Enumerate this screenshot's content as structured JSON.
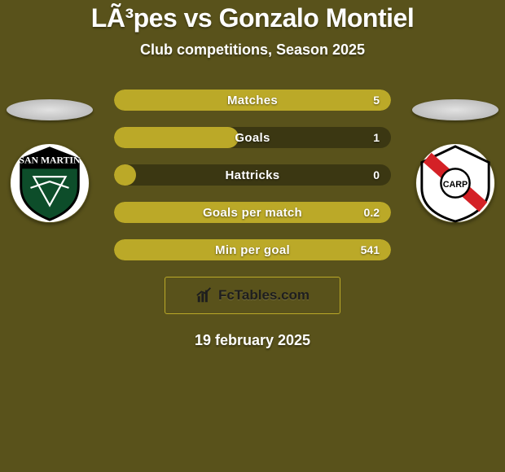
{
  "colors": {
    "background": "#59521b",
    "pill_fill": "#bba928",
    "pill_empty": "#3b3712",
    "text": "#ffffff",
    "brand_text": "#1e1e1e"
  },
  "header": {
    "title": "LÃ³pes vs Gonzalo Montiel",
    "subtitle": "Club competitions, Season 2025"
  },
  "stats": [
    {
      "label": "Matches",
      "value_text": "5",
      "fill_pct": 100
    },
    {
      "label": "Goals",
      "value_text": "1",
      "fill_pct": 45
    },
    {
      "label": "Hattricks",
      "value_text": "0",
      "fill_pct": 8
    },
    {
      "label": "Goals per match",
      "value_text": "0.2",
      "fill_pct": 100
    },
    {
      "label": "Min per goal",
      "value_text": "541",
      "fill_pct": 100
    }
  ],
  "left_club": {
    "name": "San Martín",
    "badge_text": "SAN MARTIN",
    "badge_bg": "#ffffff",
    "badge_inner": "#0d4d2a",
    "badge_accent": "#000000"
  },
  "right_club": {
    "name": "River Plate",
    "badge_bg": "#ffffff",
    "badge_band": "#d42126",
    "badge_center_text": "CARP"
  },
  "brand": {
    "text": "FcTables.com",
    "icon": "chart-icon"
  },
  "date_text": "19 february 2025"
}
